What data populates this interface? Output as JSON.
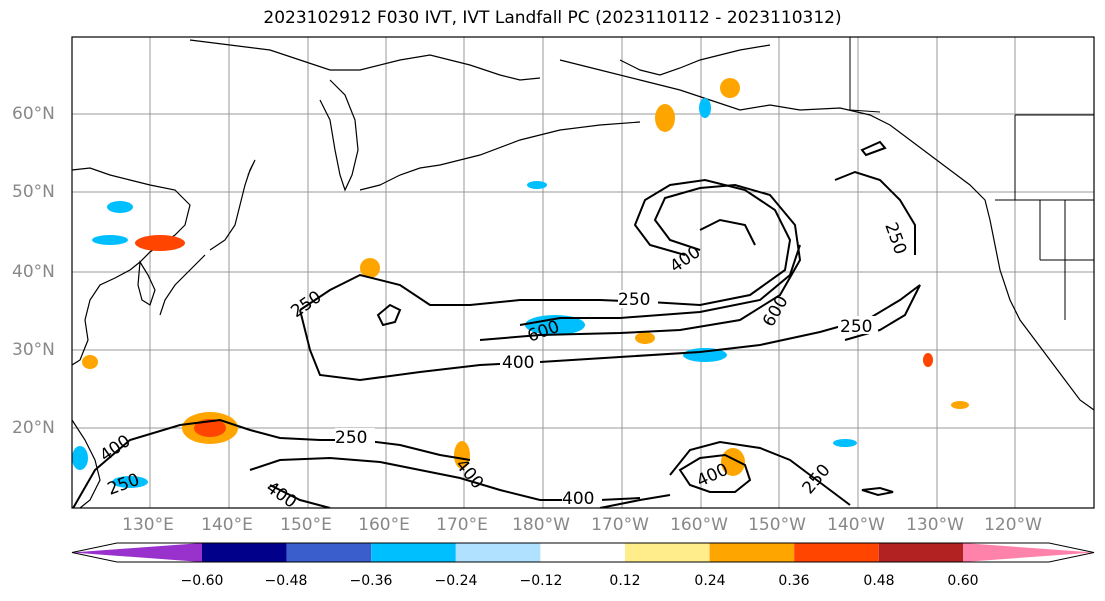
{
  "title": "2023102912 F030 IVT, IVT Landfall PC (2023110112 - 2023110312)",
  "lat_labels": [
    "60°N",
    "50°N",
    "40°N",
    "30°N",
    "20°N"
  ],
  "lon_labels": [
    "130°E",
    "140°E",
    "150°E",
    "160°E",
    "170°E",
    "180°W",
    "170°W",
    "160°W",
    "150°W",
    "140°W",
    "130°W",
    "120°W"
  ],
  "contour_labels": [
    "250",
    "250",
    "250",
    "250",
    "250",
    "250",
    "250",
    "400",
    "400",
    "400",
    "400",
    "400",
    "400",
    "400",
    "600",
    "600"
  ],
  "colorbar": {
    "colors": [
      "#9932cc",
      "#00008b",
      "#3a5fcd",
      "#00bfff",
      "#b0e2ff",
      "#ffffff",
      "#ffec8b",
      "#ffa500",
      "#ff4500",
      "#b22222",
      "#ff82ab"
    ],
    "ticks": [
      "−0.60",
      "−0.48",
      "−0.36",
      "−0.24",
      "−0.12",
      "0.12",
      "0.24",
      "0.36",
      "0.48",
      "0.60"
    ]
  }
}
